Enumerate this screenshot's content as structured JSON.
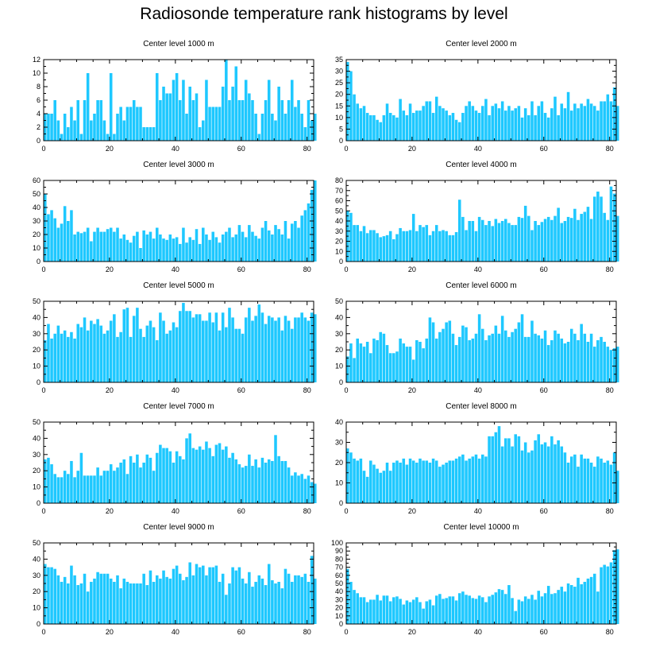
{
  "figure_title": "Radiosonde temperature rank histograms by level",
  "bar_color": "#1ec8ff",
  "chart_data": [
    {
      "type": "bar",
      "title": "Center level 1000 m",
      "xlim": [
        0,
        82
      ],
      "xticks": [
        0,
        20,
        40,
        60,
        80
      ],
      "ylim": [
        0,
        12
      ],
      "yticks": [
        0,
        2,
        4,
        6,
        8,
        10,
        12
      ],
      "values": [
        4,
        4,
        4,
        6,
        3,
        1,
        4,
        2,
        5,
        3,
        6,
        1,
        6,
        10,
        3,
        4,
        6,
        6,
        3,
        1,
        10,
        1,
        4,
        5,
        3,
        5,
        5,
        6,
        5,
        5,
        2,
        2,
        2,
        2,
        10,
        6,
        8,
        7,
        7,
        9,
        10,
        6,
        9,
        4,
        8,
        6,
        7,
        2,
        3,
        9,
        5,
        5,
        5,
        5,
        8,
        12,
        6,
        8,
        11,
        6,
        6,
        9,
        7,
        6,
        4,
        1,
        4,
        6,
        9,
        4,
        3,
        8,
        6,
        4,
        6,
        9,
        5,
        6,
        4,
        2,
        6,
        3,
        4
      ]
    },
    {
      "type": "bar",
      "title": "Center level 2000 m",
      "xlim": [
        0,
        82
      ],
      "xticks": [
        0,
        20,
        40,
        60,
        80
      ],
      "ylim": [
        0,
        35
      ],
      "yticks": [
        0,
        5,
        10,
        15,
        20,
        25,
        30,
        35
      ],
      "values": [
        34,
        30,
        20,
        16,
        14,
        15,
        12,
        11,
        11,
        9,
        8,
        11,
        16,
        12,
        11,
        10,
        18,
        13,
        11,
        16,
        12,
        13,
        13,
        15,
        17,
        17,
        12,
        19,
        15,
        14,
        13,
        11,
        12,
        9,
        8,
        12,
        15,
        17,
        15,
        13,
        12,
        15,
        18,
        11,
        15,
        16,
        14,
        17,
        13,
        15,
        13,
        14,
        15,
        10,
        14,
        11,
        17,
        11,
        15,
        17,
        12,
        10,
        14,
        19,
        11,
        16,
        14,
        21,
        13,
        16,
        14,
        16,
        15,
        18,
        16,
        15,
        13,
        17,
        17,
        20,
        17,
        23,
        15
      ]
    },
    {
      "type": "bar",
      "title": "Center level 3000 m",
      "xlim": [
        0,
        82
      ],
      "xticks": [
        0,
        20,
        40,
        60,
        80
      ],
      "ylim": [
        0,
        60
      ],
      "yticks": [
        0,
        10,
        20,
        30,
        40,
        50,
        60
      ],
      "values": [
        50,
        35,
        38,
        32,
        25,
        28,
        41,
        30,
        38,
        20,
        22,
        21,
        22,
        25,
        15,
        22,
        25,
        22,
        22,
        24,
        25,
        22,
        25,
        17,
        20,
        16,
        14,
        19,
        22,
        10,
        23,
        20,
        22,
        17,
        25,
        20,
        17,
        16,
        20,
        17,
        18,
        13,
        25,
        14,
        18,
        16,
        24,
        13,
        25,
        20,
        16,
        22,
        18,
        14,
        20,
        22,
        25,
        18,
        20,
        27,
        22,
        18,
        27,
        22,
        19,
        17,
        25,
        30,
        23,
        20,
        27,
        24,
        20,
        30,
        17,
        28,
        30,
        25,
        34,
        38,
        43,
        53,
        60
      ]
    },
    {
      "type": "bar",
      "title": "Center level 4000 m",
      "xlim": [
        0,
        82
      ],
      "xticks": [
        0,
        20,
        40,
        60,
        80
      ],
      "ylim": [
        0,
        80
      ],
      "yticks": [
        0,
        10,
        20,
        30,
        40,
        50,
        60,
        70,
        80
      ],
      "values": [
        50,
        48,
        36,
        36,
        30,
        35,
        28,
        31,
        31,
        28,
        24,
        25,
        26,
        30,
        22,
        27,
        33,
        30,
        30,
        31,
        47,
        30,
        36,
        34,
        36,
        26,
        30,
        36,
        30,
        31,
        30,
        26,
        26,
        29,
        61,
        44,
        31,
        40,
        40,
        30,
        44,
        41,
        36,
        40,
        35,
        42,
        38,
        40,
        42,
        38,
        36,
        36,
        44,
        43,
        55,
        45,
        31,
        40,
        36,
        39,
        42,
        44,
        41,
        45,
        53,
        38,
        40,
        44,
        43,
        52,
        41,
        47,
        49,
        54,
        42,
        64,
        69,
        64,
        48,
        41,
        74,
        67,
        45
      ]
    },
    {
      "type": "bar",
      "title": "Center level 5000 m",
      "xlim": [
        0,
        82
      ],
      "xticks": [
        0,
        20,
        40,
        60,
        80
      ],
      "ylim": [
        0,
        50
      ],
      "yticks": [
        0,
        10,
        20,
        30,
        40,
        50
      ],
      "values": [
        26,
        36,
        27,
        30,
        35,
        30,
        32,
        28,
        31,
        27,
        36,
        34,
        40,
        32,
        38,
        36,
        39,
        35,
        30,
        32,
        38,
        42,
        28,
        31,
        45,
        46,
        28,
        41,
        46,
        33,
        28,
        35,
        38,
        34,
        26,
        43,
        38,
        30,
        32,
        37,
        34,
        44,
        49,
        44,
        44,
        40,
        42,
        42,
        38,
        38,
        43,
        37,
        43,
        32,
        43,
        34,
        46,
        40,
        33,
        33,
        30,
        40,
        46,
        38,
        41,
        48,
        43,
        36,
        41,
        40,
        38,
        40,
        32,
        41,
        38,
        33,
        40,
        40,
        43,
        40,
        38,
        43,
        42
      ]
    },
    {
      "type": "bar",
      "title": "Center level 6000 m",
      "xlim": [
        0,
        82
      ],
      "xticks": [
        0,
        20,
        40,
        60,
        80
      ],
      "ylim": [
        0,
        50
      ],
      "yticks": [
        0,
        10,
        20,
        30,
        40,
        50
      ],
      "values": [
        16,
        24,
        15,
        27,
        24,
        22,
        25,
        18,
        27,
        26,
        31,
        30,
        23,
        18,
        18,
        19,
        27,
        24,
        22,
        22,
        14,
        26,
        25,
        21,
        27,
        40,
        37,
        27,
        31,
        33,
        37,
        38,
        30,
        23,
        28,
        35,
        34,
        26,
        27,
        30,
        42,
        33,
        26,
        29,
        30,
        35,
        30,
        41,
        32,
        28,
        31,
        33,
        37,
        42,
        28,
        28,
        38,
        30,
        29,
        27,
        32,
        23,
        26,
        32,
        30,
        27,
        24,
        25,
        33,
        30,
        26,
        36,
        30,
        25,
        30,
        22,
        26,
        28,
        25,
        22,
        20,
        21,
        22
      ]
    },
    {
      "type": "bar",
      "title": "Center level 7000 m",
      "xlim": [
        0,
        82
      ],
      "xticks": [
        0,
        20,
        40,
        60,
        80
      ],
      "ylim": [
        0,
        50
      ],
      "yticks": [
        0,
        10,
        20,
        30,
        40,
        50
      ],
      "values": [
        27,
        28,
        24,
        18,
        16,
        16,
        20,
        18,
        26,
        16,
        20,
        31,
        17,
        17,
        17,
        17,
        22,
        17,
        20,
        20,
        24,
        20,
        22,
        25,
        27,
        18,
        29,
        25,
        30,
        22,
        25,
        30,
        28,
        20,
        31,
        36,
        34,
        34,
        32,
        25,
        32,
        29,
        27,
        40,
        43,
        34,
        33,
        35,
        33,
        38,
        34,
        29,
        36,
        37,
        33,
        35,
        28,
        31,
        27,
        24,
        22,
        23,
        30,
        23,
        27,
        22,
        28,
        25,
        27,
        26,
        42,
        29,
        26,
        26,
        22,
        17,
        19,
        17,
        18,
        15,
        17,
        13,
        12
      ]
    },
    {
      "type": "bar",
      "title": "Center level 8000 m",
      "xlim": [
        0,
        82
      ],
      "xticks": [
        0,
        20,
        40,
        60,
        80
      ],
      "ylim": [
        0,
        40
      ],
      "yticks": [
        0,
        10,
        20,
        30,
        40
      ],
      "values": [
        27,
        25,
        22,
        21,
        22,
        16,
        13,
        21,
        19,
        17,
        15,
        16,
        20,
        16,
        20,
        21,
        20,
        22,
        19,
        22,
        21,
        20,
        22,
        21,
        21,
        20,
        22,
        21,
        18,
        19,
        20,
        21,
        21,
        22,
        23,
        24,
        21,
        22,
        23,
        24,
        22,
        24,
        23,
        33,
        33,
        35,
        38,
        28,
        32,
        32,
        28,
        34,
        33,
        26,
        30,
        25,
        26,
        31,
        34,
        29,
        30,
        28,
        33,
        29,
        31,
        28,
        25,
        20,
        23,
        24,
        18,
        24,
        22,
        22,
        20,
        18,
        23,
        22,
        20,
        21,
        19,
        25,
        16
      ]
    },
    {
      "type": "bar",
      "title": "Center level 9000 m",
      "xlim": [
        0,
        82
      ],
      "xticks": [
        0,
        20,
        40,
        60,
        80
      ],
      "ylim": [
        0,
        50
      ],
      "yticks": [
        0,
        10,
        20,
        30,
        40,
        50
      ],
      "values": [
        37,
        35,
        35,
        34,
        30,
        26,
        29,
        25,
        36,
        30,
        24,
        25,
        31,
        20,
        26,
        28,
        32,
        31,
        31,
        31,
        28,
        26,
        30,
        22,
        28,
        26,
        25,
        25,
        25,
        25,
        31,
        24,
        33,
        26,
        30,
        28,
        33,
        29,
        28,
        34,
        36,
        31,
        27,
        29,
        38,
        30,
        37,
        35,
        36,
        30,
        35,
        35,
        36,
        26,
        31,
        18,
        25,
        35,
        33,
        35,
        28,
        25,
        32,
        23,
        26,
        30,
        28,
        24,
        37,
        27,
        25,
        26,
        22,
        34,
        31,
        26,
        30,
        30,
        29,
        31,
        26,
        42,
        28
      ]
    },
    {
      "type": "bar",
      "title": "Center level 10000 m",
      "xlim": [
        0,
        82
      ],
      "xticks": [
        0,
        20,
        40,
        60,
        80
      ],
      "ylim": [
        0,
        100
      ],
      "yticks": [
        0,
        10,
        20,
        30,
        40,
        50,
        60,
        70,
        80,
        90,
        100
      ],
      "values": [
        68,
        52,
        42,
        38,
        33,
        33,
        27,
        30,
        30,
        36,
        29,
        35,
        35,
        28,
        33,
        34,
        31,
        24,
        29,
        27,
        30,
        33,
        27,
        19,
        28,
        30,
        23,
        35,
        37,
        31,
        32,
        34,
        34,
        29,
        38,
        40,
        36,
        35,
        32,
        31,
        35,
        33,
        27,
        34,
        36,
        39,
        43,
        42,
        37,
        48,
        32,
        16,
        30,
        28,
        34,
        31,
        36,
        30,
        41,
        34,
        38,
        47,
        37,
        38,
        42,
        46,
        40,
        50,
        48,
        46,
        57,
        49,
        52,
        56,
        58,
        62,
        40,
        70,
        73,
        71,
        76,
        91,
        92
      ]
    }
  ]
}
